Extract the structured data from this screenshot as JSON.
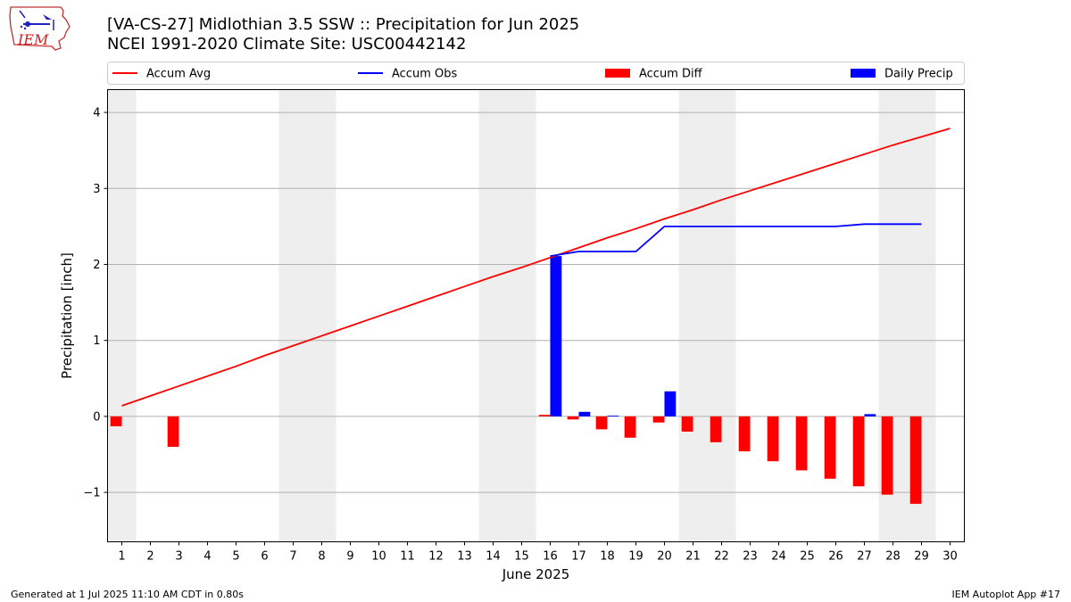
{
  "header": {
    "title": "[VA-CS-27] Midlothian 3.5 SSW :: Precipitation for Jun 2025",
    "subtitle": "NCEI 1991-2020 Climate Site: USC00442142"
  },
  "logo": {
    "text": "IEM",
    "icon": "iem-logo-icon"
  },
  "footer": {
    "left": "Generated at 1 Jul 2025 11:10 AM CDT in 0.80s",
    "right": "IEM Autoplot App #17"
  },
  "chart_data": {
    "type": "bar",
    "xlabel": "June 2025",
    "ylabel": "Precipitation [inch]",
    "xlim": [
      0.5,
      30.5
    ],
    "ylim": [
      -1.65,
      4.3
    ],
    "yticks": [
      -1,
      0,
      1,
      2,
      3,
      4
    ],
    "ytick_labels": [
      "−1",
      "0",
      "1",
      "2",
      "3",
      "4"
    ],
    "days": [
      1,
      2,
      3,
      4,
      5,
      6,
      7,
      8,
      9,
      10,
      11,
      12,
      13,
      14,
      15,
      16,
      17,
      18,
      19,
      20,
      21,
      22,
      23,
      24,
      25,
      26,
      27,
      28,
      29,
      30
    ],
    "weekend_shading": [
      [
        0.5,
        1.5
      ],
      [
        6.5,
        8.5
      ],
      [
        13.5,
        15.5
      ],
      [
        20.5,
        22.5
      ],
      [
        27.5,
        29.5
      ]
    ],
    "grid": "y",
    "legend_placement": "top, above plot",
    "colors": {
      "accum_avg": "#ff0000",
      "accum_obs": "#0000ff",
      "accum_diff": "#ff0000",
      "daily_precip": "#0000ff",
      "weekend": "#eeeeee"
    },
    "series": [
      {
        "name": "Accum Avg",
        "kind": "line",
        "color": "#ff0000",
        "x": [
          1,
          2,
          3,
          4,
          5,
          6,
          7,
          8,
          9,
          10,
          11,
          12,
          13,
          14,
          15,
          16,
          17,
          18,
          19,
          20,
          21,
          22,
          23,
          24,
          25,
          26,
          27,
          28,
          29,
          30
        ],
        "values": [
          0.14,
          0.27,
          0.4,
          0.53,
          0.66,
          0.8,
          0.93,
          1.06,
          1.19,
          1.32,
          1.45,
          1.58,
          1.71,
          1.84,
          1.96,
          2.09,
          2.22,
          2.35,
          2.47,
          2.6,
          2.72,
          2.85,
          2.97,
          3.09,
          3.21,
          3.33,
          3.45,
          3.57,
          3.68,
          3.79
        ]
      },
      {
        "name": "Accum Obs",
        "kind": "line",
        "color": "#0000ff",
        "x": [
          16,
          17,
          18,
          19,
          20,
          21,
          22,
          23,
          24,
          25,
          26,
          27,
          28,
          29
        ],
        "values": [
          2.11,
          2.17,
          2.17,
          2.17,
          2.5,
          2.5,
          2.5,
          2.5,
          2.5,
          2.5,
          2.5,
          2.53,
          2.53,
          2.53
        ]
      },
      {
        "name": "Accum Diff",
        "kind": "bar",
        "color": "#ff0000",
        "x": [
          1,
          3,
          16,
          17,
          18,
          19,
          20,
          21,
          22,
          23,
          24,
          25,
          26,
          27,
          28,
          29
        ],
        "values": [
          -0.13,
          -0.4,
          0.02,
          -0.04,
          -0.17,
          -0.28,
          -0.08,
          -0.2,
          -0.34,
          -0.46,
          -0.59,
          -0.71,
          -0.82,
          -0.92,
          -1.03,
          -1.15
        ]
      },
      {
        "name": "Daily Precip",
        "kind": "bar",
        "color": "#0000ff",
        "x": [
          16,
          17,
          18,
          20,
          27
        ],
        "values": [
          2.11,
          0.06,
          0.01,
          0.33,
          0.03
        ]
      }
    ]
  }
}
